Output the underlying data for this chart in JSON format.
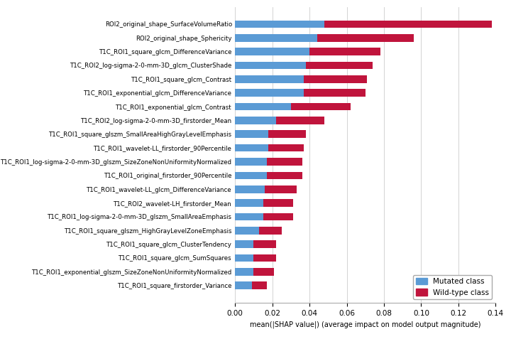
{
  "features": [
    "ROI2_original_shape_SurfaceVolumeRatio",
    "ROI2_original_shape_Sphericity",
    "T1C_ROI1_square_glcm_DifferenceVariance",
    "T1C_ROI2_log-sigma-2-0-mm-3D_glcm_ClusterShade",
    "T1C_ROI1_square_glcm_Contrast",
    "T1C_ROI1_exponential_glcm_DifferenceVariance",
    "T1C_ROI1_exponential_glcm_Contrast",
    "T1C_ROI2_log-sigma-2-0-mm-3D_firstorder_Mean",
    "T1C_ROI1_square_glszm_SmallAreaHighGrayLevelEmphasis",
    "T1C_ROI1_wavelet-LL_firstorder_90Percentile",
    "T1C_ROI1_log-sigma-2-0-mm-3D_glszm_SizeZoneNonUniformityNormalized",
    "T1C_ROI1_original_firstorder_90Percentile",
    "T1C_ROI1_wavelet-LL_glcm_DifferenceVariance",
    "T1C_ROI2_wavelet-LH_firstorder_Mean",
    "T1C_ROI1_log-sigma-2-0-mm-3D_glszm_SmallAreaEmphasis",
    "T1C_ROI1_square_glszm_HighGrayLevelZoneEmphasis",
    "T1C_ROI1_square_glcm_ClusterTendency",
    "T1C_ROI1_square_glcm_SumSquares",
    "T1C_ROI1_exponential_glszm_SizeZoneNonUniformityNormalized",
    "T1C_ROI1_square_firstorder_Variance"
  ],
  "blue_values": [
    0.048,
    0.044,
    0.04,
    0.038,
    0.037,
    0.037,
    0.03,
    0.022,
    0.018,
    0.018,
    0.017,
    0.017,
    0.016,
    0.015,
    0.015,
    0.013,
    0.01,
    0.01,
    0.01,
    0.009
  ],
  "red_values": [
    0.09,
    0.052,
    0.038,
    0.036,
    0.034,
    0.033,
    0.032,
    0.026,
    0.02,
    0.019,
    0.019,
    0.019,
    0.017,
    0.016,
    0.016,
    0.012,
    0.012,
    0.012,
    0.011,
    0.008
  ],
  "blue_color": "#5B9BD5",
  "red_color": "#C0143C",
  "xlabel": "mean(|SHAP value|) (average impact on model output magnitude)",
  "xlim": [
    0,
    0.14
  ],
  "xticks": [
    0.0,
    0.02,
    0.04,
    0.06,
    0.08,
    0.1,
    0.12,
    0.14
  ],
  "legend_labels": [
    "Mutated class",
    "Wild-type class"
  ],
  "bar_height": 0.55,
  "background_color": "#ffffff",
  "figwidth": 7.2,
  "figheight": 4.84,
  "label_fontsize": 6.2,
  "xlabel_fontsize": 7.0,
  "xtick_fontsize": 7.5
}
